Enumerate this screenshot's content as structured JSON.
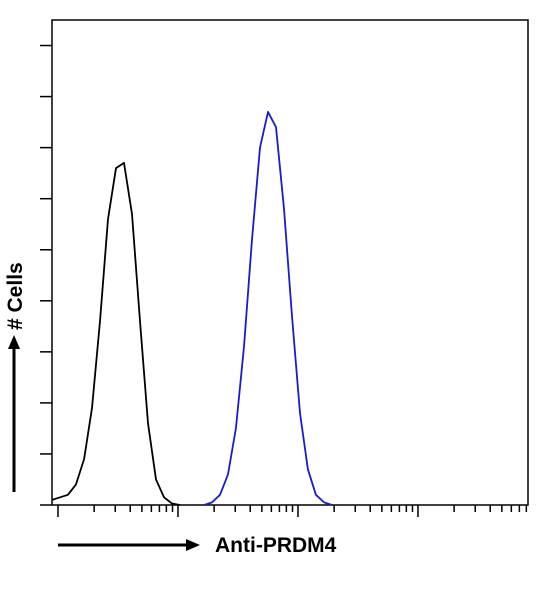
{
  "chart_data": {
    "type": "line",
    "x_label": "Anti-PRDM4",
    "y_label": "# Cells",
    "log_x": true,
    "x": [
      0.891,
      1.04,
      1.21,
      1.41,
      1.65,
      1.92,
      2.24,
      2.61,
      3.04,
      3.55,
      4.14,
      4.82,
      5.62,
      6.56,
      7.64,
      8.91,
      10.4,
      12.1,
      14.1,
      16.5,
      19.2,
      22.4,
      26.1,
      30.4,
      35.5,
      41.4,
      48.2,
      56.2,
      65.6,
      76.4,
      89.1,
      104,
      121,
      141,
      165,
      192,
      224
    ],
    "series": [
      {
        "color": "#000000",
        "values": [
          1,
          1.5,
          2,
          4,
          9,
          19,
          36,
          56,
          66,
          67,
          57,
          36,
          16,
          5,
          1.5,
          0.3,
          0,
          null,
          null,
          null,
          null,
          null,
          null,
          null,
          null,
          null,
          null,
          null,
          null,
          null,
          null,
          null,
          null,
          null,
          null,
          null,
          null
        ]
      },
      {
        "color": "#1a1ad0",
        "values": [
          null,
          null,
          null,
          null,
          null,
          null,
          null,
          null,
          null,
          null,
          null,
          null,
          null,
          null,
          null,
          null,
          null,
          null,
          null,
          0,
          0.5,
          2,
          6,
          15,
          31,
          52,
          70,
          77,
          74,
          58,
          37,
          18,
          7,
          2,
          0.5,
          0,
          null
        ]
      }
    ],
    "xlim": [
      0.891,
      8260
    ],
    "ylim": [
      0,
      95
    ],
    "xticks": [
      1,
      2,
      3,
      4,
      5,
      6,
      7,
      8,
      9,
      10,
      20,
      30,
      40,
      50,
      60,
      70,
      80,
      90,
      100,
      200,
      300,
      400,
      500,
      600,
      700,
      800,
      900,
      1000,
      2000,
      3000,
      4000,
      5000,
      6000,
      7000,
      8000
    ],
    "yticks": [
      0,
      10,
      20,
      30,
      40,
      50,
      60,
      70,
      80,
      90
    ]
  }
}
